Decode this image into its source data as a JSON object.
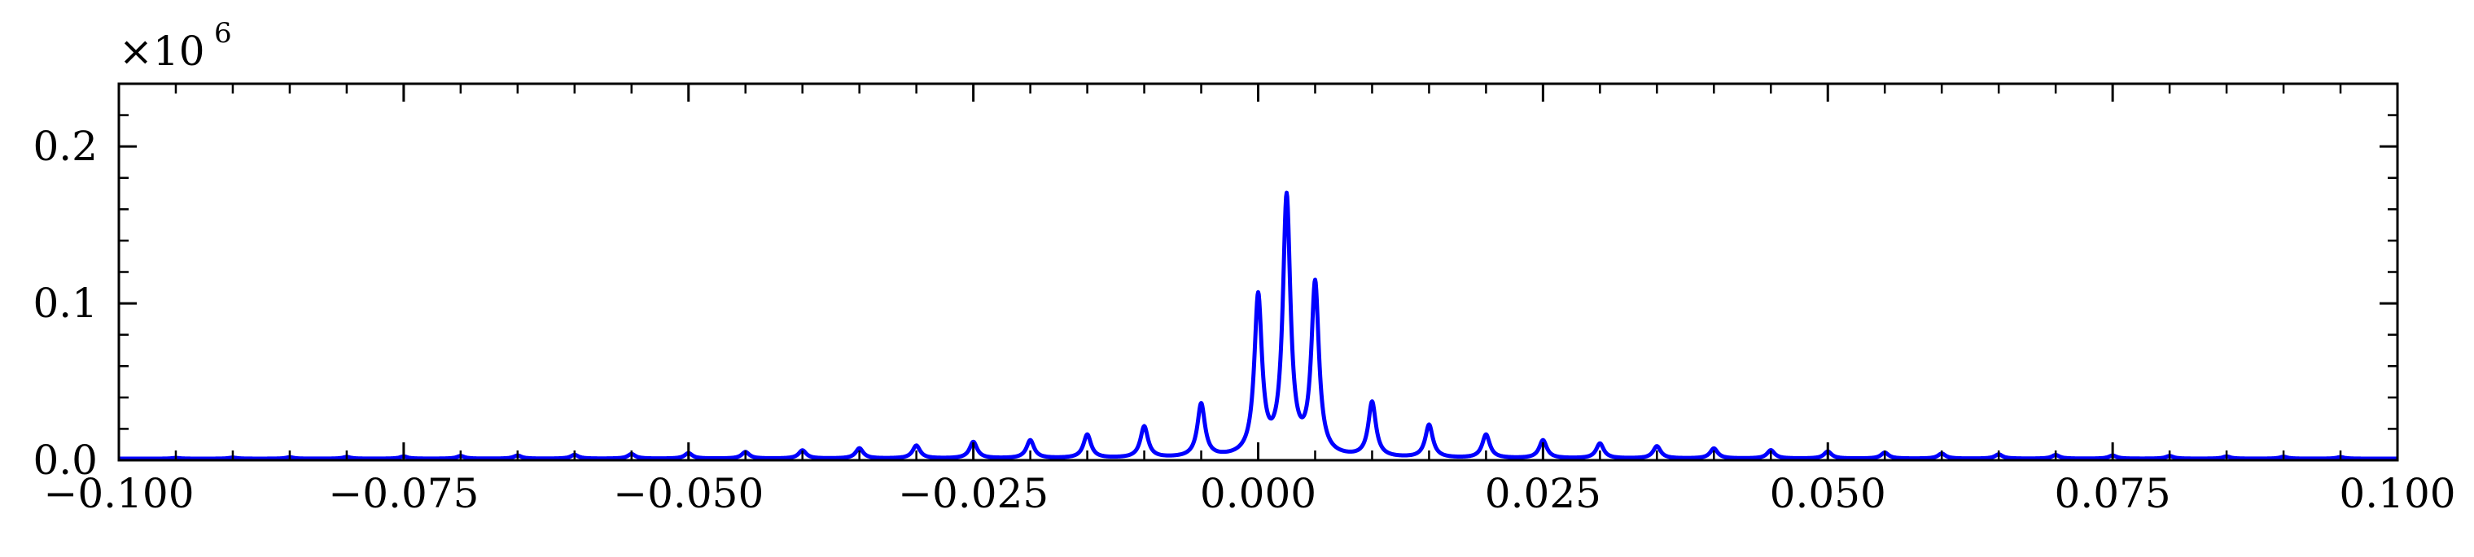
{
  "chart_data": {
    "type": "line",
    "title": "",
    "xlabel": "",
    "ylabel": "",
    "y_multiplier": "×10",
    "y_multiplier_exponent": "6",
    "xlim": [
      -0.1,
      0.1
    ],
    "ylim": [
      0.0,
      0.24
    ],
    "x_ticks": [
      -0.1,
      -0.075,
      -0.05,
      -0.025,
      0.0,
      0.025,
      0.05,
      0.075,
      0.1
    ],
    "x_tick_labels": [
      "−0.100",
      "−0.075",
      "−0.050",
      "−0.025",
      "0.000",
      "0.025",
      "0.050",
      "0.075",
      "0.100"
    ],
    "y_ticks": [
      0.0,
      0.1,
      0.2
    ],
    "y_tick_labels": [
      "0.0",
      "0.1",
      "0.2"
    ],
    "grid": false,
    "series": [
      {
        "color": "#0000ff",
        "baseline": 0.001,
        "peak_width": 0.0004,
        "peaks": [
          {
            "x": -0.095,
            "y": 0.0015
          },
          {
            "x": -0.09,
            "y": 0.0017
          },
          {
            "x": -0.085,
            "y": 0.0019
          },
          {
            "x": -0.08,
            "y": 0.0021
          },
          {
            "x": -0.075,
            "y": 0.0024
          },
          {
            "x": -0.07,
            "y": 0.0027
          },
          {
            "x": -0.065,
            "y": 0.003
          },
          {
            "x": -0.06,
            "y": 0.0034
          },
          {
            "x": -0.055,
            "y": 0.0039
          },
          {
            "x": -0.05,
            "y": 0.0045
          },
          {
            "x": -0.045,
            "y": 0.0052
          },
          {
            "x": -0.04,
            "y": 0.0062
          },
          {
            "x": -0.035,
            "y": 0.0075
          },
          {
            "x": -0.03,
            "y": 0.0092
          },
          {
            "x": -0.025,
            "y": 0.0115
          },
          {
            "x": -0.02,
            "y": 0.0125
          },
          {
            "x": -0.015,
            "y": 0.016
          },
          {
            "x": -0.01,
            "y": 0.021
          },
          {
            "x": -0.005,
            "y": 0.035
          },
          {
            "x": 0.0,
            "y": 0.102
          },
          {
            "x": 0.0025,
            "y": 0.165
          },
          {
            "x": 0.005,
            "y": 0.11
          },
          {
            "x": 0.01,
            "y": 0.036
          },
          {
            "x": 0.015,
            "y": 0.022
          },
          {
            "x": 0.02,
            "y": 0.016
          },
          {
            "x": 0.025,
            "y": 0.0125
          },
          {
            "x": 0.03,
            "y": 0.0105
          },
          {
            "x": 0.035,
            "y": 0.0088
          },
          {
            "x": 0.04,
            "y": 0.0074
          },
          {
            "x": 0.045,
            "y": 0.0063
          },
          {
            "x": 0.05,
            "y": 0.0055
          },
          {
            "x": 0.055,
            "y": 0.0048
          },
          {
            "x": 0.06,
            "y": 0.0042
          },
          {
            "x": 0.065,
            "y": 0.0037
          },
          {
            "x": 0.07,
            "y": 0.0033
          },
          {
            "x": 0.075,
            "y": 0.003
          },
          {
            "x": 0.08,
            "y": 0.0027
          },
          {
            "x": 0.085,
            "y": 0.0024
          },
          {
            "x": 0.09,
            "y": 0.0022
          },
          {
            "x": 0.095,
            "y": 0.002
          }
        ]
      }
    ]
  }
}
